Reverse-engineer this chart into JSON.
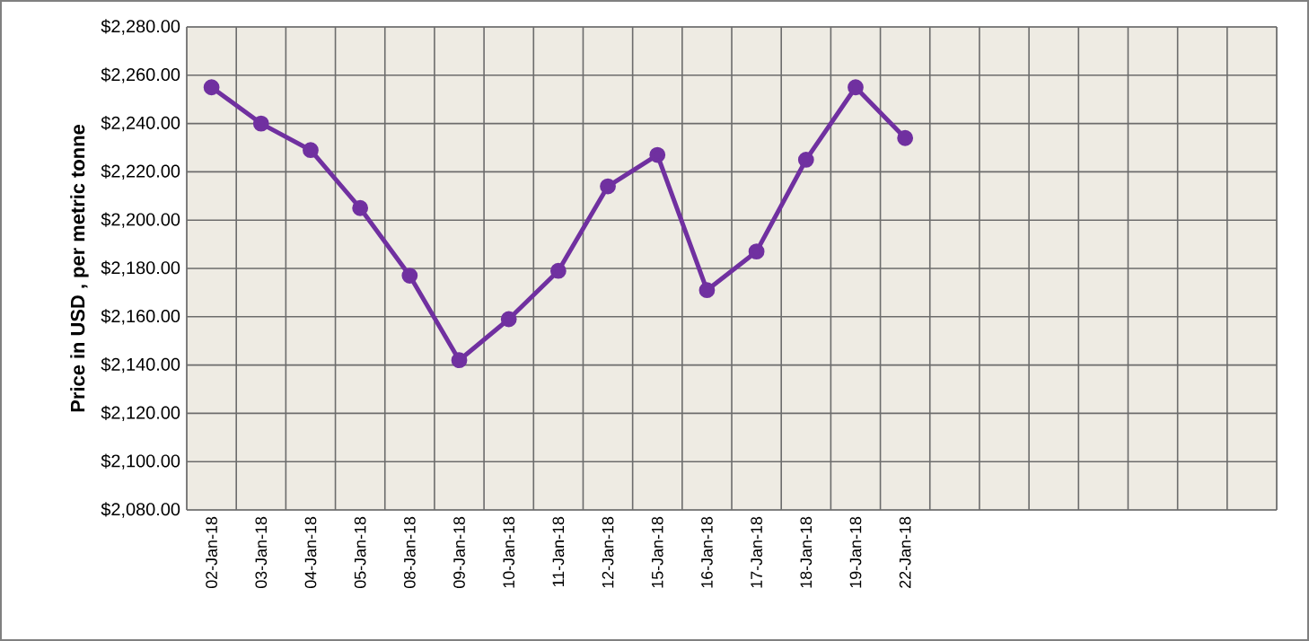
{
  "chart_data": {
    "type": "line",
    "ylabel": "Price in USD , per metric tonne",
    "categories": [
      "02-Jan-18",
      "03-Jan-18",
      "04-Jan-18",
      "05-Jan-18",
      "08-Jan-18",
      "09-Jan-18",
      "10-Jan-18",
      "11-Jan-18",
      "12-Jan-18",
      "15-Jan-18",
      "16-Jan-18",
      "17-Jan-18",
      "18-Jan-18",
      "19-Jan-18",
      "22-Jan-18",
      null,
      null,
      null,
      null,
      null,
      null,
      null
    ],
    "values": [
      2255,
      2240,
      2229,
      2205,
      2177,
      2142,
      2159,
      2179,
      2214,
      2227,
      2171,
      2187,
      2225,
      2255,
      2234,
      null,
      null,
      null,
      null,
      null,
      null,
      null
    ],
    "color": "#7030a0",
    "marker": "circle",
    "grid": true,
    "ylim": [
      2080,
      2280
    ],
    "yticks": [
      {
        "value": 2080,
        "label": "$2,080.00"
      },
      {
        "value": 2100,
        "label": "$2,100.00"
      },
      {
        "value": 2120,
        "label": "$2,120.00"
      },
      {
        "value": 2140,
        "label": "$2,140.00"
      },
      {
        "value": 2160,
        "label": "$2,160.00"
      },
      {
        "value": 2180,
        "label": "$2,180.00"
      },
      {
        "value": 2200,
        "label": "$2,200.00"
      },
      {
        "value": 2220,
        "label": "$2,220.00"
      },
      {
        "value": 2240,
        "label": "$2,240.00"
      },
      {
        "value": 2260,
        "label": "$2,260.00"
      },
      {
        "value": 2280,
        "label": "$2,280.00"
      }
    ]
  }
}
